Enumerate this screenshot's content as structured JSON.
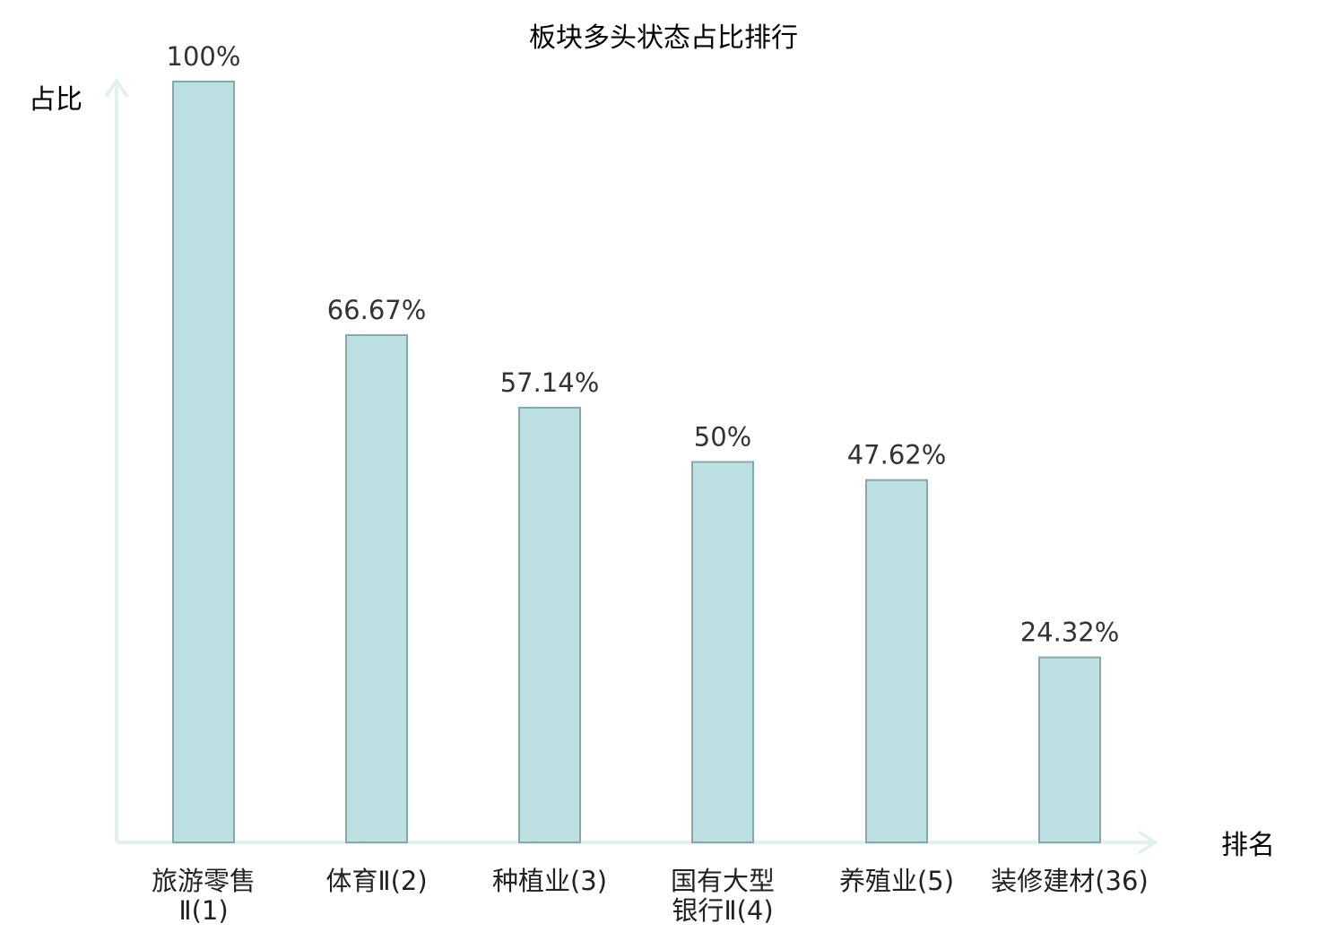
{
  "chart_data": {
    "type": "bar",
    "title": "板块多头状态占比排行",
    "ylabel": "占比",
    "xlabel": "排名",
    "categories": [
      {
        "name": "旅游零售",
        "rank_line": "Ⅱ(1)",
        "lines": [
          "旅游零售",
          "Ⅱ(1)"
        ],
        "highlight": false
      },
      {
        "name": "体育Ⅱ(2)",
        "lines": [
          "体育Ⅱ(2)"
        ],
        "highlight": false
      },
      {
        "name": "种植业(3)",
        "lines": [
          "种植业(3)"
        ],
        "highlight": false
      },
      {
        "name": "国有大型银行Ⅱ(4)",
        "lines": [
          "国有大型",
          "银行Ⅱ(4)"
        ],
        "highlight": false
      },
      {
        "name": "养殖业(5)",
        "lines": [
          "养殖业(5)"
        ],
        "highlight": false
      },
      {
        "name": "装修建材(36)",
        "lines": [
          "装修建材(36)"
        ],
        "highlight": true
      }
    ],
    "values": [
      100,
      66.67,
      57.14,
      50,
      47.62,
      24.32
    ],
    "value_labels": [
      "100%",
      "66.67%",
      "57.14%",
      "50%",
      "47.62%",
      "24.32%"
    ],
    "ylim": [
      0,
      100
    ],
    "grid": false,
    "colors": {
      "bar_fill": "#bde0e3",
      "bar_stroke": "#86a8ab",
      "axis": "#dff2f0",
      "highlight_text": "#e02020",
      "text": "#222222"
    }
  }
}
